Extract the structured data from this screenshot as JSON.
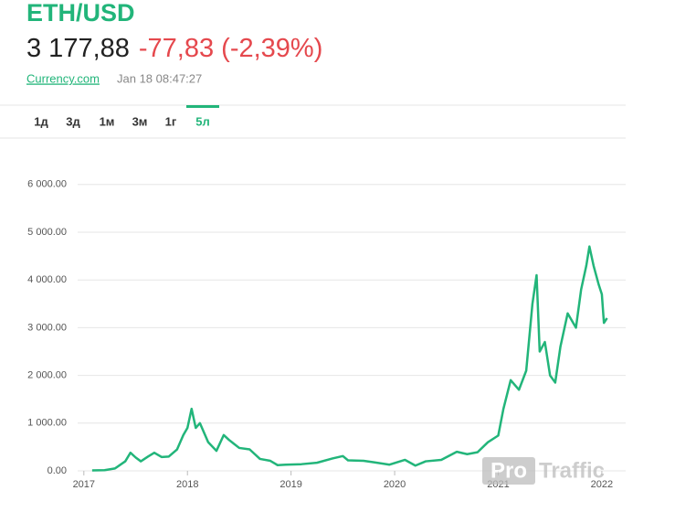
{
  "header": {
    "title": "ETH/USD",
    "price": "3 177,88",
    "change": "-77,83 (-2,39%)",
    "source": "Currency.com",
    "timestamp": "Jan 18 08:47:27",
    "tabs": [
      "1д",
      "3д",
      "1м",
      "3м",
      "1г",
      "5л"
    ],
    "active_tab": 5
  },
  "watermark": {
    "left": "Pro",
    "right": "Traffic"
  },
  "chart_data": {
    "type": "line",
    "color": "#22b57a",
    "grid": true,
    "x": [
      2017.08,
      2017.2,
      2017.3,
      2017.4,
      2017.45,
      2017.5,
      2017.55,
      2017.62,
      2017.68,
      2017.75,
      2017.82,
      2017.9,
      2017.96,
      2018.0,
      2018.04,
      2018.08,
      2018.12,
      2018.2,
      2018.28,
      2018.35,
      2018.4,
      2018.5,
      2018.6,
      2018.7,
      2018.8,
      2018.87,
      2018.95,
      2019.1,
      2019.25,
      2019.4,
      2019.5,
      2019.55,
      2019.7,
      2019.8,
      2019.95,
      2020.1,
      2020.2,
      2020.3,
      2020.45,
      2020.6,
      2020.7,
      2020.8,
      2020.9,
      2021.0,
      2021.05,
      2021.12,
      2021.2,
      2021.27,
      2021.33,
      2021.37,
      2021.4,
      2021.45,
      2021.5,
      2021.55,
      2021.6,
      2021.67,
      2021.75,
      2021.8,
      2021.85,
      2021.88,
      2021.92,
      2021.97,
      2022.0,
      2022.02,
      2022.05
    ],
    "values": [
      10,
      15,
      50,
      200,
      380,
      280,
      200,
      300,
      380,
      290,
      300,
      450,
      750,
      900,
      1300,
      900,
      1000,
      600,
      420,
      750,
      650,
      480,
      450,
      250,
      210,
      120,
      130,
      140,
      170,
      260,
      310,
      220,
      210,
      180,
      130,
      230,
      110,
      200,
      230,
      400,
      350,
      390,
      600,
      740,
      1300,
      1900,
      1700,
      2100,
      3500,
      4100,
      2500,
      2700,
      2000,
      1850,
      2600,
      3300,
      3000,
      3800,
      4300,
      4700,
      4300,
      3900,
      3700,
      3100,
      3200
    ],
    "xlim": [
      2016.94,
      2022.23
    ],
    "xticks": [
      2017,
      2018,
      2019,
      2020,
      2021,
      2022
    ],
    "ylim": [
      0,
      6500
    ],
    "yticks": [
      {
        "value": 0,
        "label": "0.00"
      },
      {
        "value": 1000,
        "label": "1 000.00"
      },
      {
        "value": 2000,
        "label": "2 000.00"
      },
      {
        "value": 3000,
        "label": "3 000.00"
      },
      {
        "value": 4000,
        "label": "4 000.00"
      },
      {
        "value": 5000,
        "label": "5 000.00"
      },
      {
        "value": 6000,
        "label": "6 000.00"
      }
    ]
  }
}
